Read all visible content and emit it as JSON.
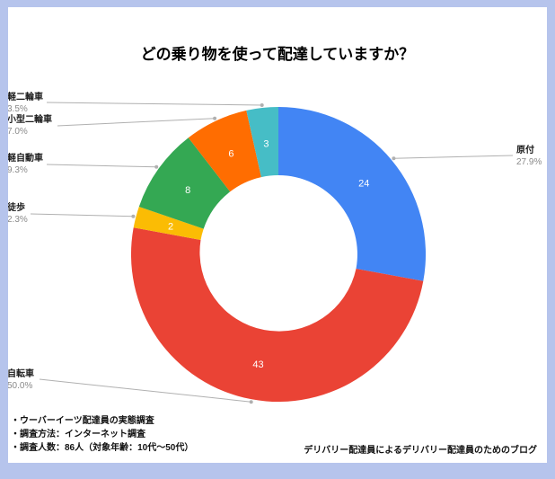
{
  "page": {
    "background": "#ffffff",
    "border_color": "#b6c4ec"
  },
  "title": "どの乗り物を使って配達していますか？",
  "chart_data": {
    "type": "pie",
    "subtype": "donut",
    "title": "どの乗り物を使って配達していますか？",
    "total": 86,
    "start_angle_deg": 0,
    "direction": "clockwise",
    "legend_position": "outside-labels-with-leader-lines",
    "value_labels": "inside-slices",
    "slices": [
      {
        "label": "原付",
        "value": 24,
        "percent": "27.9%",
        "color": "#4285f4",
        "side": "right"
      },
      {
        "label": "自転車",
        "value": 43,
        "percent": "50.0%",
        "color": "#ea4335",
        "side": "left"
      },
      {
        "label": "徒歩",
        "value": 2,
        "percent": "2.3%",
        "color": "#fbbc04",
        "side": "left"
      },
      {
        "label": "軽自動車",
        "value": 8,
        "percent": "9.3%",
        "color": "#34a853",
        "side": "left"
      },
      {
        "label": "小型二輪車",
        "value": 6,
        "percent": "7.0%",
        "color": "#ff6d01",
        "side": "left"
      },
      {
        "label": "軽二輪車",
        "value": 3,
        "percent": "3.5%",
        "color": "#46bdc6",
        "side": "left"
      }
    ]
  },
  "footer": {
    "notes": [
      "・ウーバーイーツ配達員の実態調査",
      "・調査方法：インターネット調査",
      "・調査人数：86人（対象年齢：10代～50代）"
    ],
    "credit": "デリバリー配達員によるデリバリー配達員のためのブログ"
  }
}
